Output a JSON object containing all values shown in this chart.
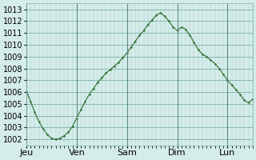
{
  "title": "",
  "ylabel": "",
  "xlabel": "",
  "bg_color": "#d4ecea",
  "plot_bg_color": "#d4ecea",
  "line_color": "#2d6e2d",
  "marker_color": "#2d6e2d",
  "grid_color": "#a0c8c0",
  "grid_color_major": "#7aafaa",
  "ylim": [
    1001.5,
    1013.5
  ],
  "yticks": [
    1002,
    1003,
    1004,
    1005,
    1006,
    1007,
    1008,
    1009,
    1010,
    1011,
    1012,
    1013
  ],
  "day_labels": [
    "Jeu",
    "Ven",
    "Sam",
    "Dim",
    "Lun"
  ],
  "day_positions": [
    0,
    24,
    48,
    72,
    96
  ],
  "total_hours": 108,
  "data_x": [
    0,
    2,
    4,
    6,
    8,
    10,
    12,
    14,
    16,
    18,
    20,
    22,
    24,
    26,
    28,
    30,
    32,
    34,
    36,
    38,
    40,
    42,
    44,
    46,
    48,
    50,
    52,
    54,
    56,
    58,
    60,
    62,
    64,
    66,
    68,
    70,
    72,
    74,
    76,
    78,
    80,
    82,
    84,
    86,
    88,
    90,
    92,
    94,
    96,
    98,
    100,
    102,
    104,
    106,
    108
  ],
  "data_y": [
    1006.1,
    1005.2,
    1004.3,
    1003.5,
    1002.9,
    1002.4,
    1002.1,
    1002.0,
    1002.1,
    1002.3,
    1002.6,
    1003.1,
    1003.8,
    1004.5,
    1005.2,
    1005.8,
    1006.3,
    1006.8,
    1007.2,
    1007.6,
    1007.9,
    1008.2,
    1008.5,
    1008.9,
    1009.3,
    1009.8,
    1010.3,
    1010.8,
    1011.2,
    1011.7,
    1012.1,
    1012.5,
    1012.7,
    1012.4,
    1012.0,
    1011.5,
    1011.2,
    1011.5,
    1011.3,
    1010.8,
    1010.2,
    1009.6,
    1009.2,
    1009.0,
    1008.7,
    1008.4,
    1008.0,
    1007.5,
    1007.0,
    1006.6,
    1006.2,
    1005.8,
    1005.3,
    1005.1,
    1005.4
  ],
  "tick_fontsize": 7,
  "label_fontsize": 8
}
